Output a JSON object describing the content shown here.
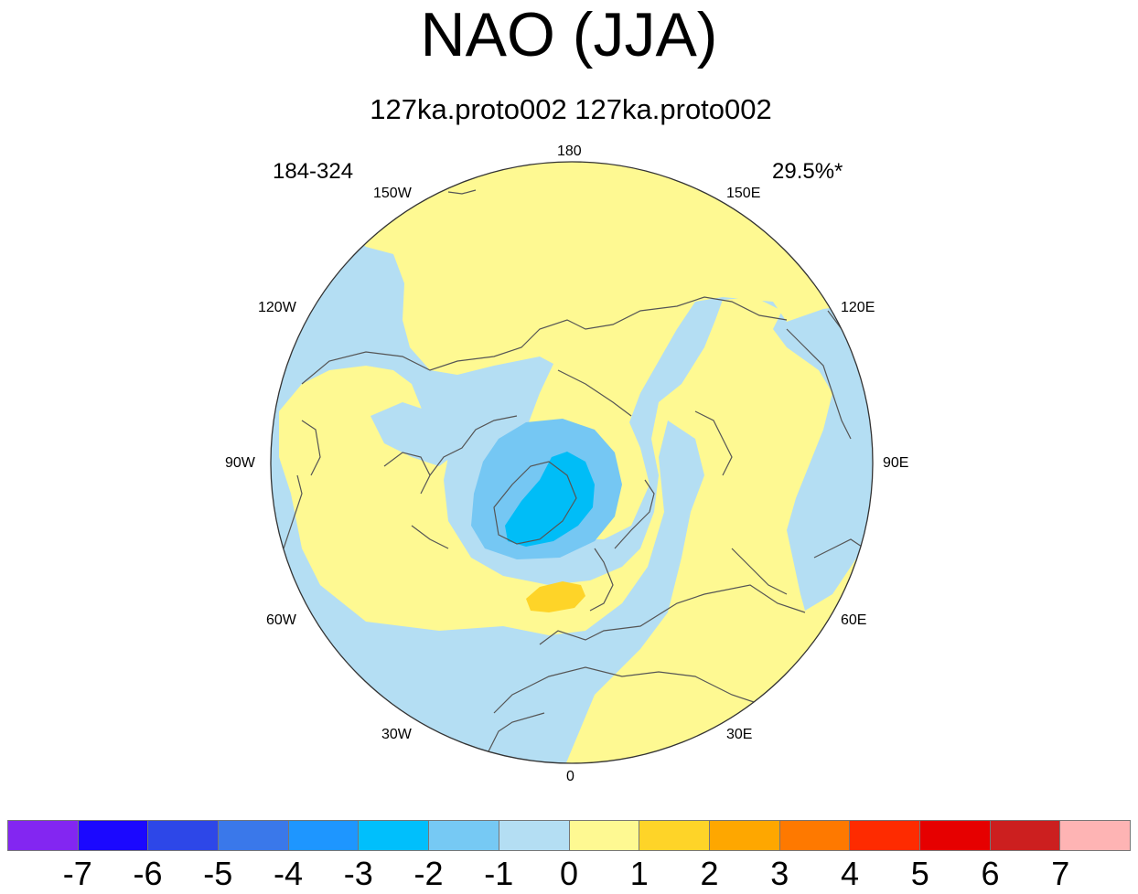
{
  "title": "NAO (JJA)",
  "subtitle": "127ka.proto002  127ka.proto002",
  "left_label": "184-324",
  "right_label": "29.5%*",
  "longitude_labels": [
    "180",
    "150E",
    "120E",
    "90E",
    "60E",
    "30E",
    "0",
    "30W",
    "60W",
    "90W",
    "120W",
    "150W"
  ],
  "map": {
    "projection": "north-polar-stereographic",
    "center": "north-pole",
    "bottom_meridian": "0",
    "regions": [
      {
        "level": 0,
        "meaning": "0 to 1",
        "color": "#fef992"
      },
      {
        "level": -1,
        "meaning": "-1 to 0",
        "color": "#b4def3"
      },
      {
        "level": -2,
        "meaning": "-2 to -1",
        "color": "#75c7f3"
      },
      {
        "level": -3,
        "meaning": "-3 to -2",
        "color": "#00bdf7"
      },
      {
        "level": 1,
        "meaning": "1 to 2",
        "color": "#fed428"
      }
    ]
  },
  "colorbar": {
    "colors": [
      "#8326f1",
      "#1b08ff",
      "#2d47e8",
      "#3a78ea",
      "#1e96ff",
      "#00bffc",
      "#76c9f4",
      "#b4def3",
      "#fef992",
      "#fed428",
      "#fea700",
      "#fe7900",
      "#fe2b00",
      "#e60000",
      "#cc1f1f",
      "#feb4b4"
    ],
    "labels": [
      "-7",
      "-6",
      "-5",
      "-4",
      "-3",
      "-2",
      "-1",
      "0",
      "1",
      "2",
      "3",
      "4",
      "5",
      "6",
      "7"
    ]
  }
}
